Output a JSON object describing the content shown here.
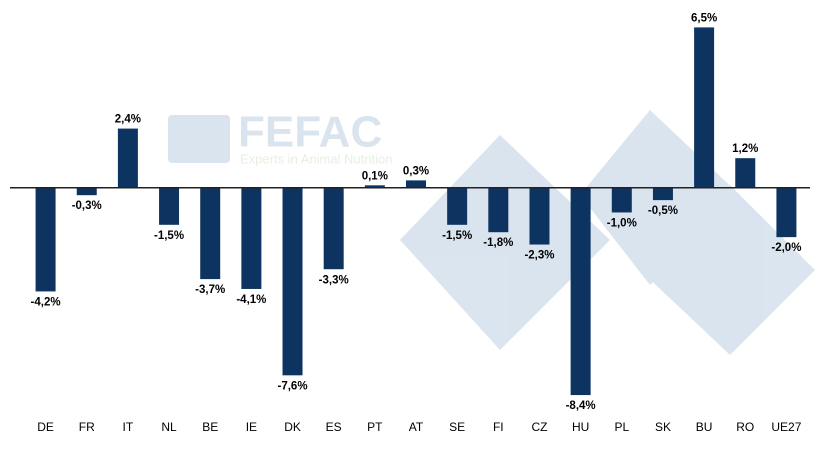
{
  "chart_data": {
    "type": "bar",
    "watermark_title": "FEFAC",
    "watermark_subtitle": "Experts in Animal Nutrition",
    "categories": [
      "DE",
      "FR",
      "IT",
      "NL",
      "BE",
      "IE",
      "DK",
      "ES",
      "PT",
      "AT",
      "SE",
      "FI",
      "CZ",
      "HU",
      "PL",
      "SK",
      "BU",
      "RO",
      "UE27"
    ],
    "values": [
      -4.2,
      -0.3,
      2.4,
      -1.5,
      -3.7,
      -4.1,
      -7.6,
      -3.3,
      0.1,
      0.3,
      -1.5,
      -1.8,
      -2.3,
      -8.4,
      -1.0,
      -0.5,
      6.5,
      1.2,
      -2.0
    ],
    "value_labels": [
      "-4,2%",
      "-0,3%",
      "2,4%",
      "-1,5%",
      "-3,7%",
      "-4,1%",
      "-7,6%",
      "-3,3%",
      "0,1%",
      "0,3%",
      "-1,5%",
      "-1,8%",
      "-2,3%",
      "-8,4%",
      "-1,0%",
      "-0,5%",
      "6,5%",
      "1,2%",
      "-2,0%"
    ],
    "color": "#0d3461",
    "ylim": [
      -8.6,
      6.8
    ]
  }
}
